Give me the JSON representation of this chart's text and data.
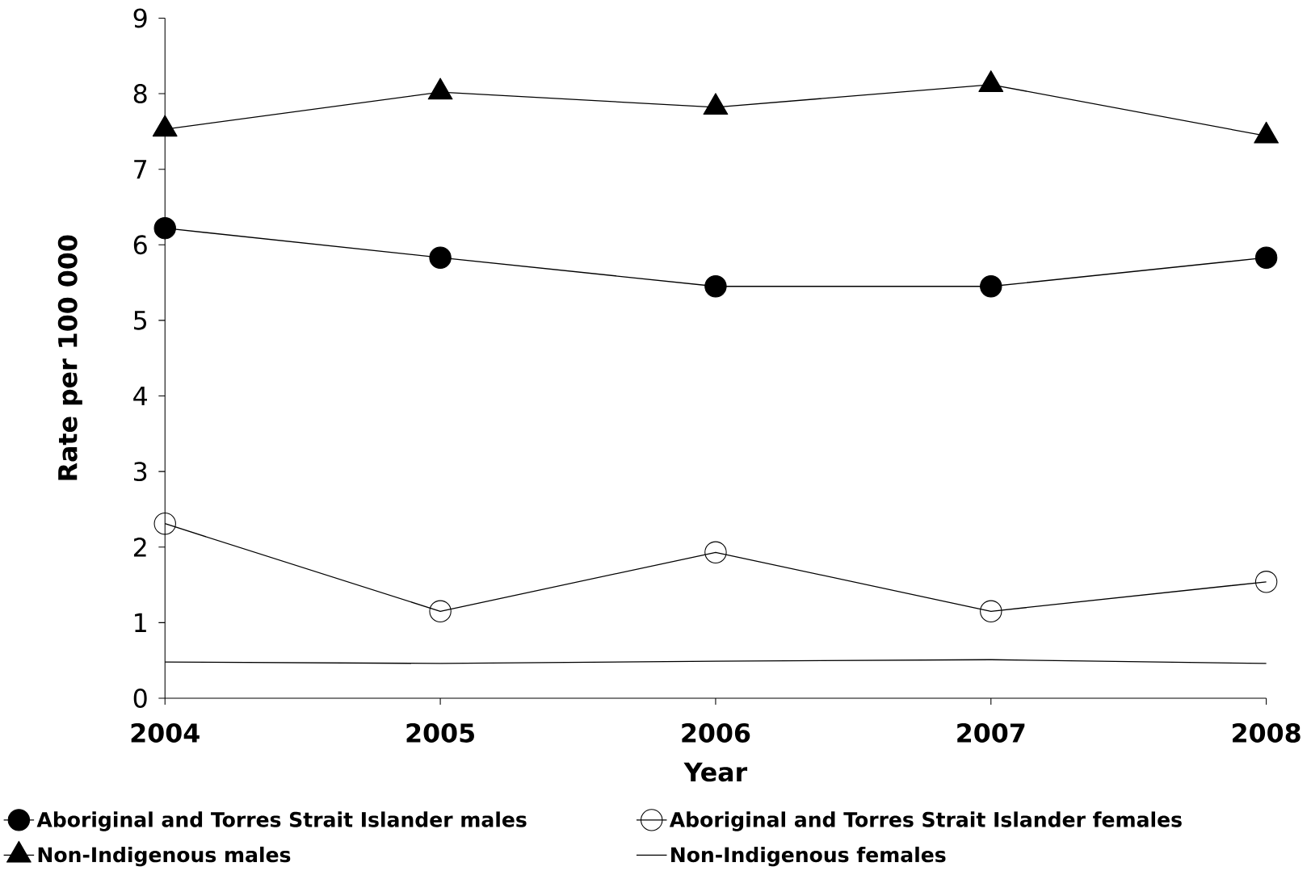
{
  "chart_data": {
    "type": "line",
    "xlabel": "Year",
    "ylabel": "Rate per 100 000",
    "categories": [
      "2004",
      "2005",
      "2006",
      "2007",
      "2008"
    ],
    "ylim": [
      0,
      9
    ],
    "yticks": [
      0,
      1,
      2,
      3,
      4,
      5,
      6,
      7,
      8,
      9
    ],
    "grid": false,
    "legend": "bottom",
    "line_style": "solid",
    "series": [
      {
        "name": "Aboriginal and Torres Strait Islander males",
        "color": "#000000",
        "marker": "circle",
        "values": [
          6.22,
          5.83,
          5.45,
          5.45,
          5.83
        ]
      },
      {
        "name": "Aboriginal and Torres Strait Islander females",
        "color": "#000000",
        "marker": "circle",
        "values": [
          2.31,
          1.15,
          1.93,
          1.15,
          1.54
        ]
      },
      {
        "name": "Non-Indigenous males",
        "color": "#000000",
        "marker": "triangle",
        "values": [
          7.53,
          8.02,
          7.82,
          8.12,
          7.44
        ]
      },
      {
        "name": "Non-Indigenous females",
        "color": "#000000",
        "marker": "none",
        "values": [
          0.48,
          0.46,
          0.49,
          0.51,
          0.46
        ]
      }
    ]
  }
}
